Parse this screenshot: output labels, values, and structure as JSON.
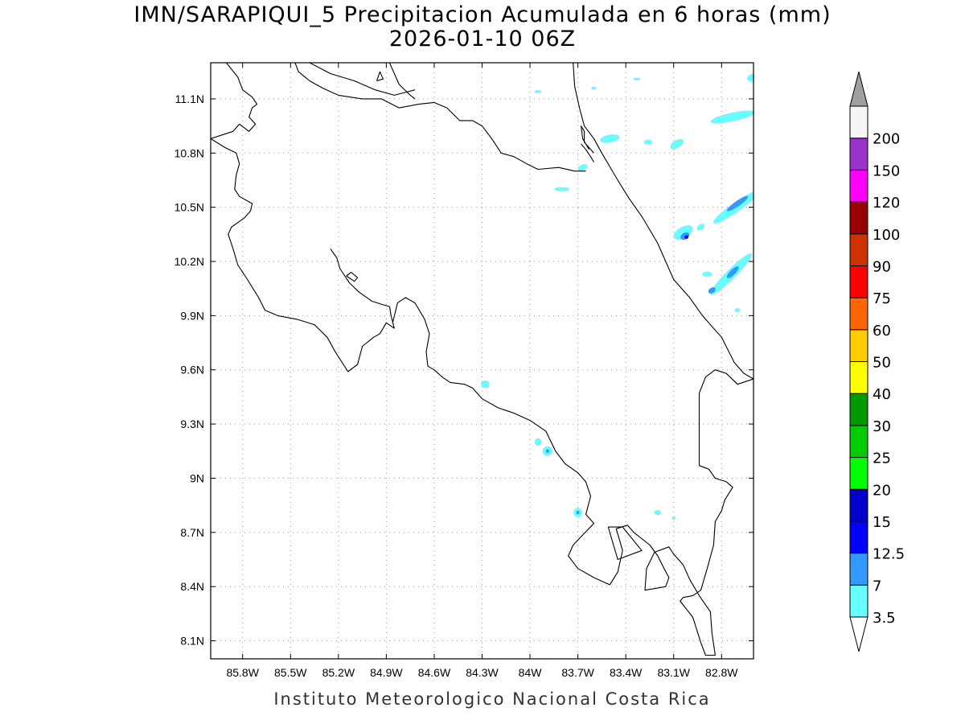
{
  "header": {
    "title": "IMN/SARAPIQUI_5 Precipitacion Acumulada en 6 horas (mm)",
    "subtitle": "2026-01-10 06Z"
  },
  "footer": {
    "text": "Instituto Meteorologico Nacional Costa Rica"
  },
  "map": {
    "lon_range": [
      -86.0,
      -82.6
    ],
    "lat_range": [
      8.0,
      11.3
    ],
    "lon_ticks": [
      {
        "v": -85.8,
        "label": "85.8W"
      },
      {
        "v": -85.5,
        "label": "85.5W"
      },
      {
        "v": -85.2,
        "label": "85.2W"
      },
      {
        "v": -84.9,
        "label": "84.9W"
      },
      {
        "v": -84.6,
        "label": "84.6W"
      },
      {
        "v": -84.3,
        "label": "84.3W"
      },
      {
        "v": -84.0,
        "label": "84W"
      },
      {
        "v": -83.7,
        "label": "83.7W"
      },
      {
        "v": -83.4,
        "label": "83.4W"
      },
      {
        "v": -83.1,
        "label": "83.1W"
      },
      {
        "v": -82.8,
        "label": "82.8W"
      }
    ],
    "lat_ticks": [
      {
        "v": 11.1,
        "label": "11.1N"
      },
      {
        "v": 10.8,
        "label": "10.8N"
      },
      {
        "v": 10.5,
        "label": "10.5N"
      },
      {
        "v": 10.2,
        "label": "10.2N"
      },
      {
        "v": 9.9,
        "label": "9.9N"
      },
      {
        "v": 9.6,
        "label": "9.6N"
      },
      {
        "v": 9.3,
        "label": "9.3N"
      },
      {
        "v": 9.0,
        "label": "9N"
      },
      {
        "v": 8.7,
        "label": "8.7N"
      },
      {
        "v": 8.4,
        "label": "8.4N"
      },
      {
        "v": 8.1,
        "label": "8.1N"
      }
    ],
    "grid": true
  },
  "colorbar": {
    "labels": [
      "3.5",
      "7",
      "12.5",
      "15",
      "20",
      "25",
      "30",
      "40",
      "50",
      "60",
      "75",
      "90",
      "100",
      "120",
      "150",
      "200"
    ],
    "colors": [
      "#66ffff",
      "#3399ff",
      "#0000ff",
      "#0000cc",
      "#00ff00",
      "#00cc00",
      "#009900",
      "#ffff00",
      "#ffcc00",
      "#ff6600",
      "#ff0000",
      "#cc3300",
      "#990000",
      "#ff00ff",
      "#9933cc",
      "#f5f5f5"
    ],
    "over_color": "#a0a0a0",
    "under_color": "#ffffff"
  },
  "precip_cells": [
    {
      "lon": -83.5,
      "lat": 10.88,
      "w": 0.12,
      "h": 0.04,
      "rot": -10,
      "level": 0
    },
    {
      "lon": -83.26,
      "lat": 10.86,
      "w": 0.05,
      "h": 0.025,
      "rot": 0,
      "level": 0
    },
    {
      "lon": -83.08,
      "lat": 10.85,
      "w": 0.09,
      "h": 0.04,
      "rot": -30,
      "level": 0
    },
    {
      "lon": -82.73,
      "lat": 11.0,
      "w": 0.28,
      "h": 0.045,
      "rot": -12,
      "level": 0
    },
    {
      "lon": -82.6,
      "lat": 11.22,
      "w": 0.08,
      "h": 0.04,
      "rot": -20,
      "level": 0
    },
    {
      "lon": -83.67,
      "lat": 10.72,
      "w": 0.06,
      "h": 0.03,
      "rot": -25,
      "level": 0
    },
    {
      "lon": -83.8,
      "lat": 10.6,
      "w": 0.09,
      "h": 0.02,
      "rot": 0,
      "level": 0
    },
    {
      "lon": -83.95,
      "lat": 11.14,
      "w": 0.04,
      "h": 0.015,
      "rot": 0,
      "level": 0
    },
    {
      "lon": -83.6,
      "lat": 11.16,
      "w": 0.03,
      "h": 0.012,
      "rot": 0,
      "level": 0
    },
    {
      "lon": -83.33,
      "lat": 11.21,
      "w": 0.04,
      "h": 0.012,
      "rot": 0,
      "level": 0
    },
    {
      "lon": -83.04,
      "lat": 10.36,
      "w": 0.13,
      "h": 0.06,
      "rot": -30,
      "level": 0
    },
    {
      "lon": -83.03,
      "lat": 10.34,
      "w": 0.06,
      "h": 0.035,
      "rot": -30,
      "level": 1
    },
    {
      "lon": -83.02,
      "lat": 10.335,
      "w": 0.025,
      "h": 0.02,
      "rot": 0,
      "level": 2
    },
    {
      "lon": -82.71,
      "lat": 10.5,
      "w": 0.34,
      "h": 0.05,
      "rot": -35,
      "level": 0
    },
    {
      "lon": -82.7,
      "lat": 10.52,
      "w": 0.16,
      "h": 0.03,
      "rot": -35,
      "level": 1
    },
    {
      "lon": -82.93,
      "lat": 10.39,
      "w": 0.05,
      "h": 0.03,
      "rot": -35,
      "level": 0
    },
    {
      "lon": -82.74,
      "lat": 10.13,
      "w": 0.36,
      "h": 0.05,
      "rot": -45,
      "level": 0
    },
    {
      "lon": -82.73,
      "lat": 10.14,
      "w": 0.1,
      "h": 0.03,
      "rot": -45,
      "level": 1
    },
    {
      "lon": -82.86,
      "lat": 10.04,
      "w": 0.05,
      "h": 0.03,
      "rot": -35,
      "level": 1
    },
    {
      "lon": -82.89,
      "lat": 10.13,
      "w": 0.06,
      "h": 0.025,
      "rot": 0,
      "level": 0
    },
    {
      "lon": -82.7,
      "lat": 9.93,
      "w": 0.03,
      "h": 0.02,
      "rot": 0,
      "level": 0
    },
    {
      "lon": -84.28,
      "lat": 9.52,
      "w": 0.05,
      "h": 0.04,
      "rot": 0,
      "level": 0
    },
    {
      "lon": -83.95,
      "lat": 9.2,
      "w": 0.04,
      "h": 0.04,
      "rot": 0,
      "level": 0
    },
    {
      "lon": -83.89,
      "lat": 9.15,
      "w": 0.06,
      "h": 0.05,
      "rot": 0,
      "level": 0
    },
    {
      "lon": -83.89,
      "lat": 9.15,
      "w": 0.02,
      "h": 0.02,
      "rot": 0,
      "level": 1
    },
    {
      "lon": -83.7,
      "lat": 8.81,
      "w": 0.05,
      "h": 0.05,
      "rot": 0,
      "level": 0
    },
    {
      "lon": -83.7,
      "lat": 8.81,
      "w": 0.02,
      "h": 0.02,
      "rot": 0,
      "level": 1
    },
    {
      "lon": -83.2,
      "lat": 8.81,
      "w": 0.04,
      "h": 0.025,
      "rot": 0,
      "level": 0
    },
    {
      "lon": -83.1,
      "lat": 8.78,
      "w": 0.02,
      "h": 0.015,
      "rot": 0,
      "level": 0
    }
  ],
  "coastlines": [
    [
      [
        -85.92,
        11.32
      ],
      [
        -85.83,
        11.22
      ],
      [
        -85.8,
        11.15
      ],
      [
        -85.74,
        11.11
      ],
      [
        -85.71,
        11.07
      ],
      [
        -85.74,
        11.05
      ],
      [
        -85.76,
        11.0
      ],
      [
        -85.72,
        10.96
      ],
      [
        -85.76,
        10.92
      ],
      [
        -85.82,
        10.96
      ],
      [
        -85.86,
        10.92
      ],
      [
        -85.93,
        10.9
      ],
      [
        -86.0,
        10.88
      ],
      [
        -85.91,
        10.83
      ],
      [
        -85.84,
        10.8
      ],
      [
        -85.82,
        10.74
      ],
      [
        -85.84,
        10.68
      ],
      [
        -85.85,
        10.6
      ],
      [
        -85.82,
        10.56
      ],
      [
        -85.74,
        10.52
      ],
      [
        -85.75,
        10.48
      ],
      [
        -85.79,
        10.44
      ],
      [
        -85.87,
        10.39
      ],
      [
        -85.89,
        10.35
      ],
      [
        -85.86,
        10.27
      ],
      [
        -85.83,
        10.18
      ],
      [
        -85.77,
        10.1
      ],
      [
        -85.7,
        10.0
      ],
      [
        -85.66,
        9.93
      ],
      [
        -85.58,
        9.9
      ],
      [
        -85.46,
        9.88
      ],
      [
        -85.35,
        9.85
      ],
      [
        -85.27,
        9.78
      ],
      [
        -85.22,
        9.7
      ],
      [
        -85.14,
        9.59
      ],
      [
        -85.08,
        9.63
      ],
      [
        -85.05,
        9.73
      ],
      [
        -84.98,
        9.78
      ],
      [
        -84.94,
        9.8
      ],
      [
        -84.9,
        9.86
      ],
      [
        -84.85,
        9.83
      ],
      [
        -84.87,
        9.9
      ],
      [
        -84.88,
        9.95
      ],
      [
        -84.92,
        9.96
      ],
      [
        -84.99,
        9.98
      ],
      [
        -85.07,
        10.03
      ],
      [
        -85.13,
        10.08
      ],
      [
        -85.19,
        10.16
      ],
      [
        -85.21,
        10.22
      ],
      [
        -85.25,
        10.27
      ]
    ],
    [
      [
        -85.15,
        10.12
      ],
      [
        -85.12,
        10.14
      ],
      [
        -85.08,
        10.11
      ],
      [
        -85.1,
        10.09
      ],
      [
        -85.15,
        10.12
      ]
    ],
    [
      [
        -84.86,
        9.86
      ],
      [
        -84.83,
        9.97
      ],
      [
        -84.78,
        10.0
      ],
      [
        -84.72,
        9.97
      ],
      [
        -84.66,
        9.88
      ],
      [
        -84.63,
        9.8
      ],
      [
        -84.65,
        9.7
      ],
      [
        -84.64,
        9.62
      ],
      [
        -84.6,
        9.6
      ],
      [
        -84.55,
        9.56
      ],
      [
        -84.5,
        9.53
      ],
      [
        -84.41,
        9.52
      ],
      [
        -84.36,
        9.5
      ],
      [
        -84.3,
        9.44
      ],
      [
        -84.2,
        9.39
      ],
      [
        -84.1,
        9.36
      ],
      [
        -84.0,
        9.32
      ],
      [
        -83.9,
        9.26
      ],
      [
        -83.84,
        9.15
      ],
      [
        -83.78,
        9.08
      ],
      [
        -83.7,
        9.03
      ],
      [
        -83.65,
        8.98
      ],
      [
        -83.62,
        8.9
      ],
      [
        -83.65,
        8.8
      ],
      [
        -83.6,
        8.75
      ],
      [
        -83.73,
        8.63
      ],
      [
        -83.76,
        8.57
      ],
      [
        -83.7,
        8.5
      ],
      [
        -83.6,
        8.45
      ],
      [
        -83.5,
        8.41
      ],
      [
        -83.45,
        8.48
      ],
      [
        -83.42,
        8.6
      ],
      [
        -83.46,
        8.72
      ],
      [
        -83.39,
        8.74
      ],
      [
        -83.35,
        8.7
      ],
      [
        -83.25,
        8.63
      ],
      [
        -83.2,
        8.57
      ],
      [
        -83.16,
        8.5
      ],
      [
        -83.13,
        8.45
      ],
      [
        -83.15,
        8.4
      ],
      [
        -83.28,
        8.38
      ],
      [
        -83.27,
        8.5
      ],
      [
        -83.22,
        8.59
      ],
      [
        -83.13,
        8.62
      ],
      [
        -83.1,
        8.58
      ],
      [
        -83.04,
        8.52
      ],
      [
        -83.0,
        8.44
      ],
      [
        -82.94,
        8.35
      ],
      [
        -82.87,
        8.26
      ],
      [
        -82.86,
        8.14
      ],
      [
        -82.84,
        8.02
      ],
      [
        -82.9,
        8.02
      ],
      [
        -82.93,
        8.09
      ],
      [
        -82.98,
        8.23
      ],
      [
        -83.06,
        8.32
      ],
      [
        -83.04,
        8.34
      ],
      [
        -82.98,
        8.35
      ],
      [
        -82.93,
        8.38
      ],
      [
        -82.89,
        8.5
      ],
      [
        -82.85,
        8.63
      ],
      [
        -82.84,
        8.76
      ],
      [
        -82.8,
        8.82
      ],
      [
        -82.78,
        8.88
      ],
      [
        -82.73,
        8.95
      ],
      [
        -82.77,
        8.98
      ],
      [
        -82.84,
        9.0
      ],
      [
        -82.88,
        9.05
      ],
      [
        -82.94,
        9.07
      ],
      [
        -82.94,
        9.47
      ],
      [
        -82.9,
        9.56
      ],
      [
        -82.84,
        9.6
      ],
      [
        -82.77,
        9.58
      ],
      [
        -82.7,
        9.52
      ],
      [
        -82.6,
        9.55
      ]
    ],
    [
      [
        -83.51,
        8.73
      ],
      [
        -83.42,
        8.73
      ],
      [
        -83.3,
        8.6
      ],
      [
        -83.45,
        8.55
      ],
      [
        -83.51,
        8.73
      ]
    ],
    [
      [
        -82.6,
        9.55
      ],
      [
        -82.66,
        9.58
      ],
      [
        -82.72,
        9.64
      ],
      [
        -82.8,
        9.78
      ],
      [
        -82.92,
        9.9
      ],
      [
        -83.0,
        10.0
      ],
      [
        -83.1,
        10.1
      ],
      [
        -83.2,
        10.3
      ],
      [
        -83.3,
        10.45
      ],
      [
        -83.38,
        10.55
      ],
      [
        -83.45,
        10.65
      ],
      [
        -83.55,
        10.8
      ],
      [
        -83.6,
        10.88
      ],
      [
        -83.66,
        10.95
      ],
      [
        -83.69,
        11.05
      ],
      [
        -83.72,
        11.17
      ],
      [
        -83.73,
        11.3
      ]
    ],
    [
      [
        -83.6,
        10.8
      ],
      [
        -83.66,
        10.86
      ],
      [
        -83.66,
        10.92
      ],
      [
        -83.68,
        10.95
      ],
      [
        -83.67,
        10.88
      ],
      [
        -83.63,
        10.82
      ]
    ],
    [
      [
        -83.6,
        10.75
      ],
      [
        -83.62,
        10.78
      ],
      [
        -83.65,
        10.82
      ],
      [
        -83.68,
        10.85
      ]
    ],
    [
      [
        -85.48,
        11.32
      ],
      [
        -85.45,
        11.25
      ],
      [
        -85.38,
        11.2
      ],
      [
        -85.3,
        11.16
      ],
      [
        -85.2,
        11.12
      ],
      [
        -85.05,
        11.1
      ],
      [
        -84.93,
        11.1
      ],
      [
        -84.82,
        11.05
      ],
      [
        -84.7,
        11.07
      ],
      [
        -84.6,
        11.08
      ],
      [
        -84.52,
        11.05
      ],
      [
        -84.44,
        10.98
      ],
      [
        -84.36,
        10.98
      ],
      [
        -84.3,
        10.95
      ],
      [
        -84.24,
        10.88
      ],
      [
        -84.18,
        10.8
      ],
      [
        -84.1,
        10.78
      ],
      [
        -84.02,
        10.74
      ],
      [
        -83.95,
        10.71
      ],
      [
        -83.82,
        10.72
      ],
      [
        -83.72,
        10.7
      ],
      [
        -83.65,
        10.7
      ]
    ],
    [
      [
        -84.72,
        11.15
      ],
      [
        -84.85,
        11.12
      ],
      [
        -84.97,
        11.15
      ],
      [
        -85.1,
        11.2
      ],
      [
        -85.25,
        11.24
      ],
      [
        -85.38,
        11.3
      ]
    ],
    [
      [
        -84.88,
        11.3
      ],
      [
        -84.82,
        11.18
      ],
      [
        -84.75,
        11.12
      ],
      [
        -84.72,
        11.1
      ]
    ],
    [
      [
        -84.96,
        11.2
      ],
      [
        -84.92,
        11.21
      ],
      [
        -84.94,
        11.25
      ],
      [
        -84.96,
        11.2
      ]
    ]
  ]
}
